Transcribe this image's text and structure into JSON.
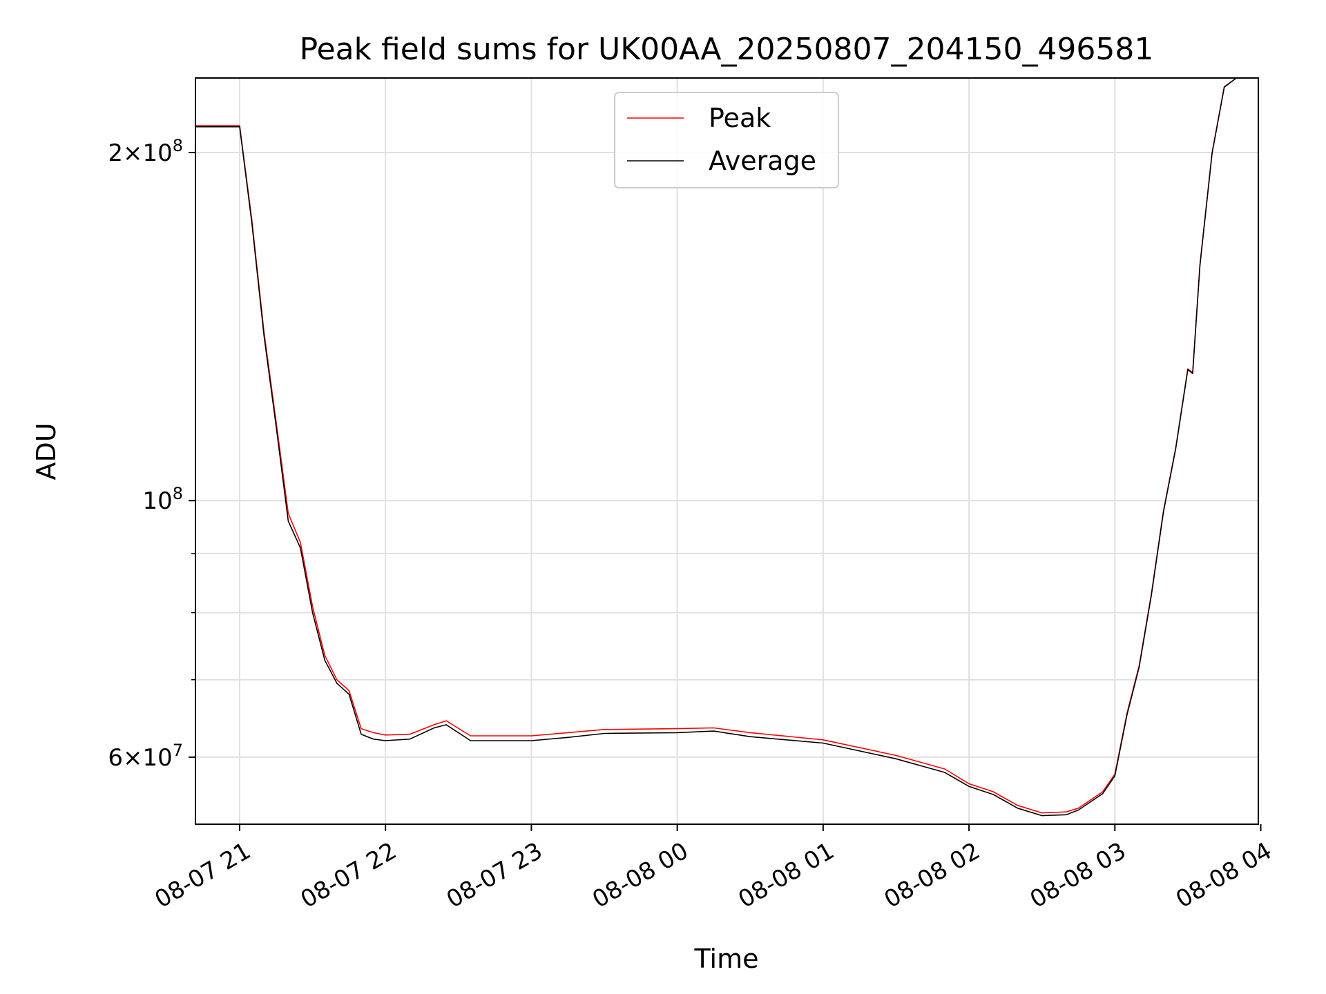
{
  "chart_data": {
    "type": "line",
    "title": "Peak field sums for UK00AA_20250807_204150_496581",
    "xlabel": "Time",
    "ylabel": "ADU",
    "x_range": [
      "2025-08-07T20:41:50",
      "2025-08-08T03:59:00"
    ],
    "ylim": [
      52500000,
      232000000
    ],
    "yscale": "log",
    "grid": true,
    "legend_position": "top-center",
    "x_ticks": [
      "08-07 21",
      "08-07 22",
      "08-07 23",
      "08-08 00",
      "08-08 01",
      "08-08 02",
      "08-08 03",
      "08-08 04"
    ],
    "x_tick_values": [
      "2025-08-07T21:00",
      "2025-08-07T22:00",
      "2025-08-07T23:00",
      "2025-08-08T00:00",
      "2025-08-08T01:00",
      "2025-08-08T02:00",
      "2025-08-08T03:00",
      "2025-08-08T04:00"
    ],
    "y_ticks": [
      {
        "value": 60000000,
        "mantissa": "6",
        "exp": "7"
      },
      {
        "value": 100000000,
        "mantissa": "",
        "exp": "8"
      },
      {
        "value": 200000000,
        "mantissa": "2",
        "exp": "8"
      }
    ],
    "y_minor_ticks": [
      70000000,
      80000000,
      90000000
    ],
    "series": [
      {
        "name": "Peak",
        "color": "#ff0000",
        "x": [
          "2025-08-07T20:41:50",
          "2025-08-07T20:50",
          "2025-08-07T21:00",
          "2025-08-07T21:05",
          "2025-08-07T21:10",
          "2025-08-07T21:15",
          "2025-08-07T21:20",
          "2025-08-07T21:25",
          "2025-08-07T21:30",
          "2025-08-07T21:35",
          "2025-08-07T21:40",
          "2025-08-07T21:45",
          "2025-08-07T21:50",
          "2025-08-07T21:55",
          "2025-08-07T22:00",
          "2025-08-07T22:10",
          "2025-08-07T22:20",
          "2025-08-07T22:25",
          "2025-08-07T22:35",
          "2025-08-07T23:00",
          "2025-08-07T23:15",
          "2025-08-07T23:30",
          "2025-08-08T00:00",
          "2025-08-08T00:15",
          "2025-08-08T00:30",
          "2025-08-08T01:00",
          "2025-08-08T01:30",
          "2025-08-08T01:50",
          "2025-08-08T02:00",
          "2025-08-08T02:10",
          "2025-08-08T02:20",
          "2025-08-08T02:30",
          "2025-08-08T02:40",
          "2025-08-08T02:45",
          "2025-08-08T02:55",
          "2025-08-08T03:00",
          "2025-08-08T03:05",
          "2025-08-08T03:10",
          "2025-08-08T03:15",
          "2025-08-08T03:20",
          "2025-08-08T03:25",
          "2025-08-08T03:30",
          "2025-08-08T03:32",
          "2025-08-08T03:35",
          "2025-08-08T03:40",
          "2025-08-08T03:45",
          "2025-08-08T03:50"
        ],
        "y": [
          211000000,
          211000000,
          211000000,
          175000000,
          140000000,
          117000000,
          97500000,
          92000000,
          81000000,
          73500000,
          70000000,
          68500000,
          63500000,
          63000000,
          62700000,
          62800000,
          64000000,
          64500000,
          62600000,
          62600000,
          63000000,
          63400000,
          63500000,
          63600000,
          63000000,
          62100000,
          60200000,
          58600000,
          56900000,
          56000000,
          54500000,
          53700000,
          53800000,
          54200000,
          56000000,
          58000000,
          65500000,
          72000000,
          83000000,
          98000000,
          111000000,
          130000000,
          129000000,
          160000000,
          200000000,
          228000000,
          232000000
        ]
      },
      {
        "name": "Average",
        "color": "#000000",
        "x": [
          "2025-08-07T20:41:50",
          "2025-08-07T20:50",
          "2025-08-07T21:00",
          "2025-08-07T21:05",
          "2025-08-07T21:10",
          "2025-08-07T21:15",
          "2025-08-07T21:20",
          "2025-08-07T21:25",
          "2025-08-07T21:30",
          "2025-08-07T21:35",
          "2025-08-07T21:40",
          "2025-08-07T21:45",
          "2025-08-07T21:50",
          "2025-08-07T21:55",
          "2025-08-07T22:00",
          "2025-08-07T22:10",
          "2025-08-07T22:20",
          "2025-08-07T22:25",
          "2025-08-07T22:35",
          "2025-08-07T23:00",
          "2025-08-07T23:15",
          "2025-08-07T23:30",
          "2025-08-08T00:00",
          "2025-08-08T00:15",
          "2025-08-08T00:30",
          "2025-08-08T01:00",
          "2025-08-08T01:30",
          "2025-08-08T01:50",
          "2025-08-08T02:00",
          "2025-08-08T02:10",
          "2025-08-08T02:20",
          "2025-08-08T02:30",
          "2025-08-08T02:40",
          "2025-08-08T02:45",
          "2025-08-08T02:55",
          "2025-08-08T03:00",
          "2025-08-08T03:05",
          "2025-08-08T03:10",
          "2025-08-08T03:15",
          "2025-08-08T03:20",
          "2025-08-08T03:25",
          "2025-08-08T03:30",
          "2025-08-08T03:32",
          "2025-08-08T03:35",
          "2025-08-08T03:40",
          "2025-08-08T03:45",
          "2025-08-08T03:50"
        ],
        "y": [
          210500000,
          210500000,
          210500000,
          174000000,
          139000000,
          116000000,
          96000000,
          91000000,
          80000000,
          72800000,
          69500000,
          68000000,
          62800000,
          62200000,
          62000000,
          62200000,
          63600000,
          64000000,
          62000000,
          62000000,
          62400000,
          62900000,
          63000000,
          63200000,
          62500000,
          61700000,
          59800000,
          58200000,
          56600000,
          55700000,
          54200000,
          53400000,
          53500000,
          54000000,
          55800000,
          57800000,
          65300000,
          71800000,
          82800000,
          97800000,
          110800000,
          129800000,
          128800000,
          159800000,
          199800000,
          227800000,
          232000000
        ]
      }
    ]
  }
}
